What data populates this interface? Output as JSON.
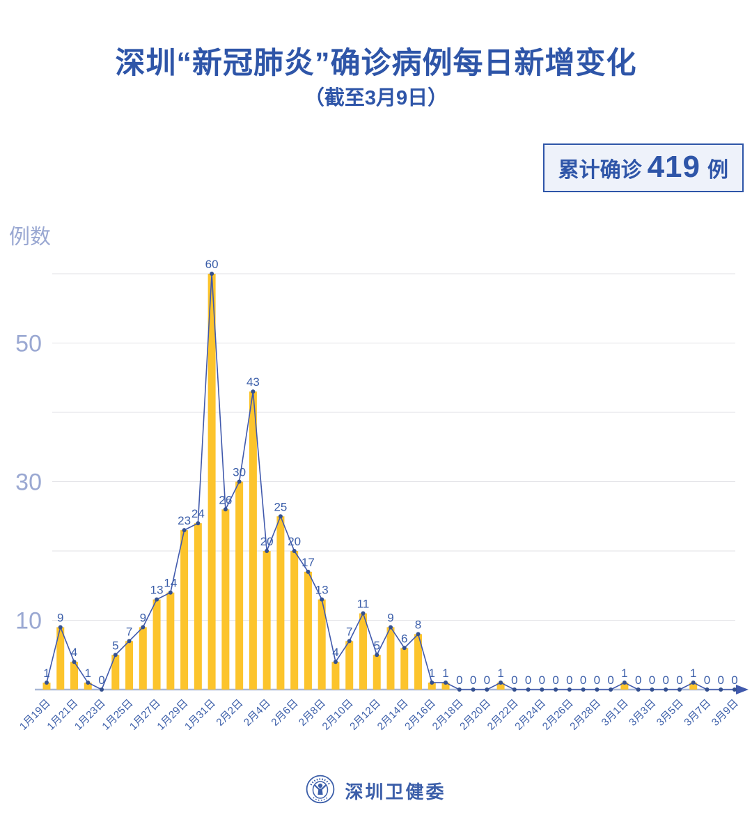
{
  "header": {
    "title": "深圳“新冠肺炎”确诊病例每日新增变化",
    "subtitle": "（截至3月9日）",
    "badge": {
      "prefix": "累计确诊",
      "value": "419",
      "suffix": "例"
    }
  },
  "chart_data": {
    "type": "bar",
    "title": "深圳“新冠肺炎”确诊病例每日新增变化（截至3月9日）",
    "xlabel": "",
    "ylabel": "例数",
    "ylim": [
      0,
      60
    ],
    "grid": true,
    "gridline_values": [
      10,
      20,
      30,
      40,
      50,
      60
    ],
    "y_tick_labels": [
      50,
      30,
      10
    ],
    "x_label_every": 2,
    "overlay": "line-with-markers-and-value-labels",
    "categories": [
      "1月19日",
      "1月20日",
      "1月21日",
      "1月22日",
      "1月23日",
      "1月24日",
      "1月25日",
      "1月26日",
      "1月27日",
      "1月28日",
      "1月29日",
      "1月30日",
      "1月31日",
      "2月1日",
      "2月2日",
      "2月3日",
      "2月4日",
      "2月5日",
      "2月6日",
      "2月7日",
      "2月8日",
      "2月9日",
      "2月10日",
      "2月11日",
      "2月12日",
      "2月13日",
      "2月14日",
      "2月15日",
      "2月16日",
      "2月17日",
      "2月18日",
      "2月19日",
      "2月20日",
      "2月21日",
      "2月22日",
      "2月23日",
      "2月24日",
      "2月25日",
      "2月26日",
      "2月27日",
      "2月28日",
      "2月29日",
      "3月1日",
      "3月2日",
      "3月3日",
      "3月4日",
      "3月5日",
      "3月6日",
      "3月7日",
      "3月8日",
      "3月9日"
    ],
    "values": [
      1,
      9,
      4,
      1,
      0,
      5,
      7,
      9,
      13,
      14,
      23,
      24,
      60,
      26,
      30,
      43,
      20,
      25,
      20,
      17,
      13,
      4,
      7,
      11,
      5,
      9,
      6,
      8,
      1,
      1,
      0,
      0,
      0,
      1,
      0,
      0,
      0,
      0,
      0,
      0,
      0,
      0,
      1,
      0,
      0,
      0,
      0,
      1,
      0,
      0,
      0
    ],
    "colors": {
      "bar": "#fcc42c",
      "line": "#4059ac",
      "marker": "#34508f",
      "value_label": "#3b5ea9",
      "x_tick_label": "#3b5ea9",
      "y_tick_label": "#9aa8d2",
      "gridline": "#e2e2e6",
      "axis": "#a9b7d6"
    }
  },
  "footer": {
    "brand": "深圳卫健委",
    "logo_icon": "shenzhen-health-commission-emblem-icon"
  },
  "theme": {
    "title_color": "#2e55a8",
    "badge_border": "#2e55a8",
    "badge_background": "#eef2fa"
  }
}
